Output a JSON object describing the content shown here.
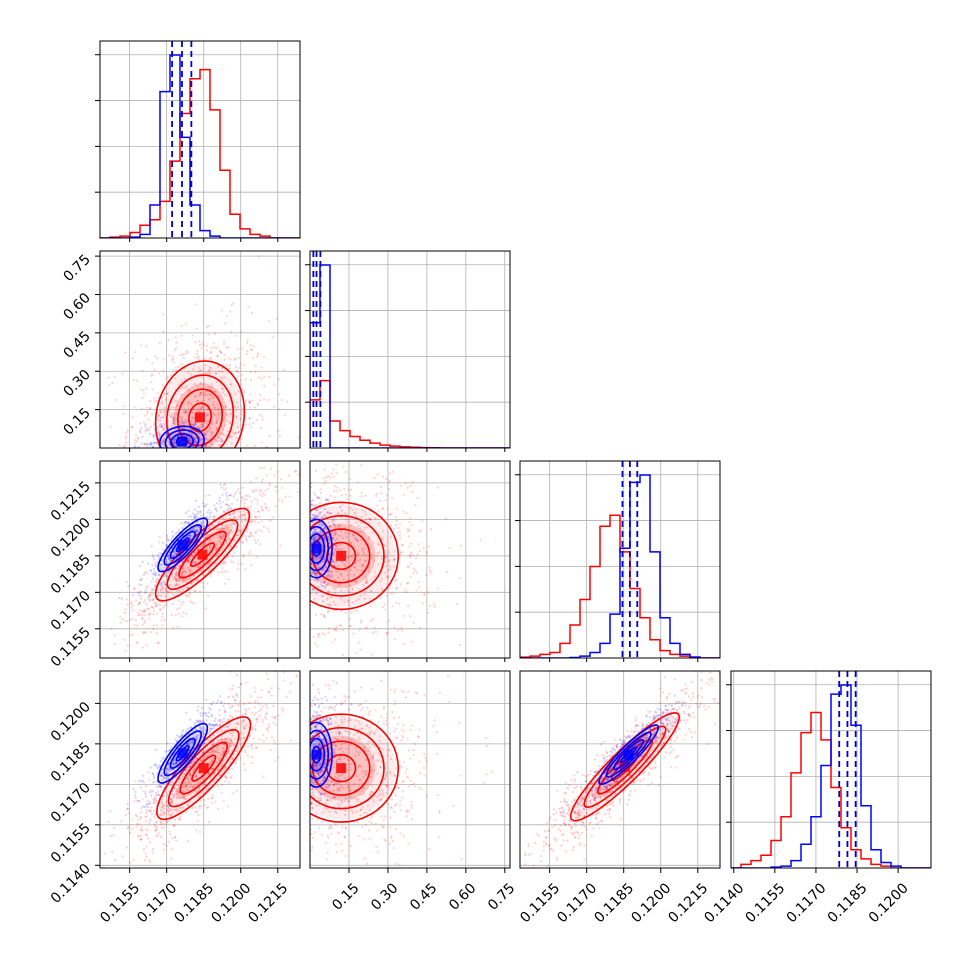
{
  "chart_data": {
    "type": "corner",
    "grid": true,
    "colors": {
      "blue": "#0000ff",
      "red": "#ff0000",
      "dashed": "#0000cc"
    },
    "parameters": [
      {
        "ticks": [
          "0.1155",
          "0.1170",
          "0.1185",
          "0.1200",
          "0.1215"
        ],
        "range": [
          0.1143,
          0.1224
        ]
      },
      {
        "ticks": [
          "0.15",
          "0.30",
          "0.45",
          "0.60",
          "0.75"
        ],
        "range": [
          0.0,
          0.77
        ]
      },
      {
        "ticks": [
          "0.1155",
          "0.1170",
          "0.1185",
          "0.1200",
          "0.1215"
        ],
        "range": [
          0.1143,
          0.1224
        ]
      },
      {
        "ticks": [
          "0.1140",
          "0.1155",
          "0.1170",
          "0.1185",
          "0.1200"
        ],
        "range": [
          0.1139,
          0.1212
        ]
      }
    ],
    "histograms": [
      {
        "x_range": [
          0.1143,
          0.1224
        ],
        "blue": [
          0,
          0,
          0,
          0.5,
          2,
          18,
          80,
          100,
          55,
          18,
          4,
          1,
          0,
          0,
          0,
          0,
          0,
          0,
          0,
          0
        ],
        "red": [
          0,
          0.5,
          1,
          3,
          7,
          10,
          20,
          42,
          68,
          87,
          92,
          70,
          37,
          13,
          5,
          2,
          1,
          0,
          0,
          0
        ],
        "quantiles_blue": [
          0.11722,
          0.11762,
          0.118
        ]
      },
      {
        "x_range": [
          0.0,
          0.77
        ],
        "blue": [
          65,
          95,
          0,
          0,
          0,
          0,
          0,
          0,
          0,
          0,
          0,
          0,
          0,
          0,
          0,
          0,
          0,
          0,
          0,
          0
        ],
        "red": [
          25,
          35,
          14,
          9,
          6,
          4,
          2.5,
          1.5,
          1,
          0.6,
          0.4,
          0.2,
          0.1,
          0,
          0,
          0,
          0,
          0,
          0,
          0
        ],
        "quantiles_blue": [
          0.013,
          0.025,
          0.04
        ]
      },
      {
        "x_range": [
          0.1143,
          0.1224
        ],
        "blue": [
          0,
          0,
          0,
          0,
          0,
          0.3,
          1,
          3,
          8,
          24,
          60,
          96,
          100,
          58,
          22,
          8,
          2,
          0.5,
          0,
          0
        ],
        "red": [
          0.5,
          1,
          2,
          3,
          8,
          18,
          32,
          50,
          72,
          78,
          58,
          38,
          22,
          10,
          4,
          2,
          1,
          0.5,
          0,
          0
        ],
        "quantiles_blue": [
          0.11845,
          0.11875,
          0.11905
        ]
      },
      {
        "x_range": [
          0.1139,
          0.1212
        ],
        "blue": [
          0,
          0,
          0,
          0,
          0.5,
          1,
          4,
          13,
          28,
          56,
          95,
          100,
          78,
          34,
          10,
          3,
          1,
          0,
          0,
          0
        ],
        "red": [
          0,
          2,
          4,
          7,
          15,
          28,
          52,
          74,
          85,
          70,
          44,
          22,
          10,
          5,
          2,
          1,
          0,
          0,
          0,
          0
        ],
        "quantiles_blue": [
          0.11785,
          0.11815,
          0.11845
        ]
      }
    ],
    "pairs": [
      {
        "row": 1,
        "col": 0,
        "corr": 0.1,
        "blue": {
          "mean": [
            0.11762,
            0.025
          ],
          "sd": [
            0.00045,
            0.03
          ]
        },
        "red": {
          "mean": [
            0.11835,
            0.12
          ],
          "sd": [
            0.0009,
            0.11
          ]
        }
      },
      {
        "row": 2,
        "col": 0,
        "corr": 0.85,
        "blue": {
          "mean": [
            0.11765,
            0.11895
          ],
          "sd": [
            0.0005,
            0.00055
          ]
        },
        "red": {
          "mean": [
            0.11845,
            0.11855
          ],
          "sd": [
            0.00095,
            0.00095
          ]
        }
      },
      {
        "row": 2,
        "col": 1,
        "corr": 0.0,
        "blue": {
          "mean": [
            0.025,
            0.1188
          ],
          "sd": [
            0.03,
            0.0006
          ]
        },
        "red": {
          "mean": [
            0.12,
            0.1185
          ],
          "sd": [
            0.11,
            0.0011
          ]
        }
      },
      {
        "row": 3,
        "col": 0,
        "corr": 0.85,
        "blue": {
          "mean": [
            0.11765,
            0.11815
          ],
          "sd": [
            0.0005,
            0.00055
          ]
        },
        "red": {
          "mean": [
            0.1185,
            0.1176
          ],
          "sd": [
            0.00095,
            0.00095
          ]
        }
      },
      {
        "row": 3,
        "col": 1,
        "corr": 0.0,
        "blue": {
          "mean": [
            0.025,
            0.1181
          ],
          "sd": [
            0.03,
            0.0006
          ]
        },
        "red": {
          "mean": [
            0.12,
            0.1176
          ],
          "sd": [
            0.11,
            0.001
          ]
        }
      },
      {
        "row": 3,
        "col": 2,
        "corr": 0.92,
        "blue": {
          "mean": [
            0.1187,
            0.1181
          ],
          "sd": [
            0.0006,
            0.00055
          ]
        },
        "red": {
          "mean": [
            0.11855,
            0.11765
          ],
          "sd": [
            0.0011,
            0.001
          ]
        }
      }
    ]
  }
}
